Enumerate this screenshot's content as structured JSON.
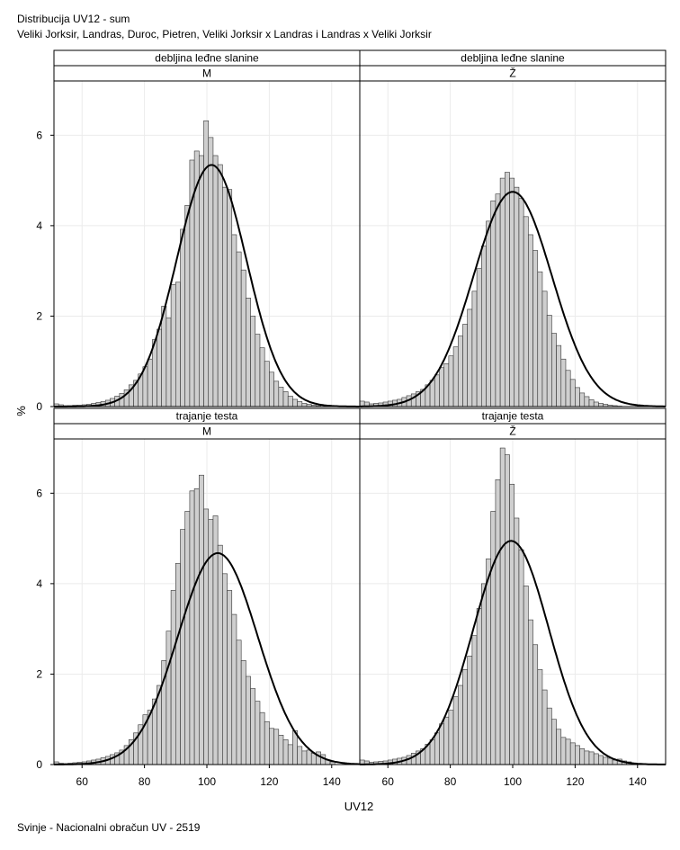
{
  "header": {
    "title": "Distribucija UV12 - sum",
    "subtitle": "Veliki Jorksir, Landras, Duroc, Pietren, Veliki Jorksir x Landras i Landras x Veliki Jorksir"
  },
  "footer": {
    "text": "Svinje - Nacionalni obračun UV - 2519"
  },
  "chart_data": {
    "type": "bar",
    "variant": "histogram-panel-grid-with-normal-curve",
    "xlabel": "UV12",
    "ylabel": "%",
    "xlim": [
      51,
      149
    ],
    "ylim": [
      0,
      7.2
    ],
    "x_ticks": [
      60,
      80,
      100,
      120,
      140
    ],
    "y_ticks": [
      0,
      2,
      4,
      6
    ],
    "bin_start": 51,
    "bin_width": 1.5,
    "grid": true,
    "colors": {
      "bar_fill": "#cfcfcf",
      "bar_stroke": "#333333",
      "curve": "#000000",
      "grid": "#ebebeb"
    },
    "panels": [
      {
        "row_label": "debljina leđne slanine",
        "col_label": "M",
        "values": [
          0.06,
          0.04,
          0.02,
          0.02,
          0.03,
          0.03,
          0.04,
          0.05,
          0.07,
          0.09,
          0.11,
          0.14,
          0.18,
          0.23,
          0.29,
          0.37,
          0.48,
          0.58,
          0.72,
          0.88,
          1.05,
          1.48,
          1.71,
          2.22,
          1.96,
          2.7,
          2.75,
          3.92,
          4.45,
          5.45,
          5.65,
          5.55,
          6.32,
          5.95,
          5.55,
          5.35,
          4.85,
          4.8,
          3.8,
          3.42,
          3.02,
          2.4,
          2.0,
          1.6,
          1.3,
          1.0,
          0.76,
          0.56,
          0.43,
          0.33,
          0.23,
          0.16,
          0.11,
          0.07,
          0.05,
          0.03,
          0.02
        ],
        "normal": {
          "mean": 101.5,
          "sd": 11.2
        }
      },
      {
        "row_label": "debljina leđne slanine",
        "col_label": "Ž",
        "values": [
          0.12,
          0.1,
          0.06,
          0.07,
          0.08,
          0.1,
          0.12,
          0.14,
          0.16,
          0.2,
          0.24,
          0.28,
          0.33,
          0.38,
          0.48,
          0.58,
          0.7,
          0.86,
          0.95,
          1.12,
          1.32,
          1.56,
          1.82,
          2.15,
          2.55,
          3.05,
          3.55,
          4.1,
          4.55,
          4.7,
          5.05,
          5.18,
          5.05,
          4.85,
          4.6,
          4.2,
          3.8,
          3.45,
          2.98,
          2.55,
          2.02,
          1.62,
          1.35,
          1.05,
          0.8,
          0.6,
          0.42,
          0.3,
          0.22,
          0.15,
          0.1,
          0.07,
          0.05,
          0.03,
          0.02,
          0.01
        ],
        "normal": {
          "mean": 100,
          "sd": 12.6
        }
      },
      {
        "row_label": "trajanje testa",
        "col_label": "M",
        "values": [
          0.06,
          0.03,
          0.02,
          0.03,
          0.04,
          0.05,
          0.06,
          0.08,
          0.1,
          0.12,
          0.15,
          0.18,
          0.22,
          0.26,
          0.32,
          0.42,
          0.55,
          0.7,
          0.88,
          1.1,
          1.2,
          1.45,
          1.75,
          2.3,
          2.95,
          3.85,
          4.45,
          5.2,
          5.6,
          6.05,
          6.1,
          6.4,
          5.65,
          5.42,
          5.5,
          4.85,
          4.22,
          3.85,
          3.32,
          2.75,
          2.3,
          1.95,
          1.68,
          1.4,
          1.15,
          0.95,
          0.8,
          0.78,
          0.65,
          0.55,
          0.44,
          0.75,
          0.4,
          0.3,
          0.32,
          0.25,
          0.28,
          0.22,
          0.1,
          0.06
        ],
        "normal": {
          "mean": 103.5,
          "sd": 12.8
        }
      },
      {
        "row_label": "trajanje testa",
        "col_label": "Ž",
        "values": [
          0.1,
          0.08,
          0.05,
          0.06,
          0.07,
          0.08,
          0.1,
          0.12,
          0.14,
          0.16,
          0.2,
          0.25,
          0.3,
          0.35,
          0.45,
          0.55,
          0.7,
          0.9,
          1.05,
          1.2,
          1.5,
          1.75,
          2.1,
          2.4,
          2.85,
          3.45,
          4.0,
          4.55,
          5.6,
          6.3,
          7.0,
          6.85,
          6.2,
          5.45,
          4.75,
          3.95,
          3.2,
          2.65,
          2.1,
          1.65,
          1.25,
          1.0,
          0.78,
          0.6,
          0.56,
          0.48,
          0.42,
          0.35,
          0.3,
          0.28,
          0.24,
          0.2,
          0.16,
          0.14,
          0.1,
          0.12,
          0.08,
          0.06
        ],
        "normal": {
          "mean": 99.5,
          "sd": 12.1
        }
      }
    ]
  }
}
